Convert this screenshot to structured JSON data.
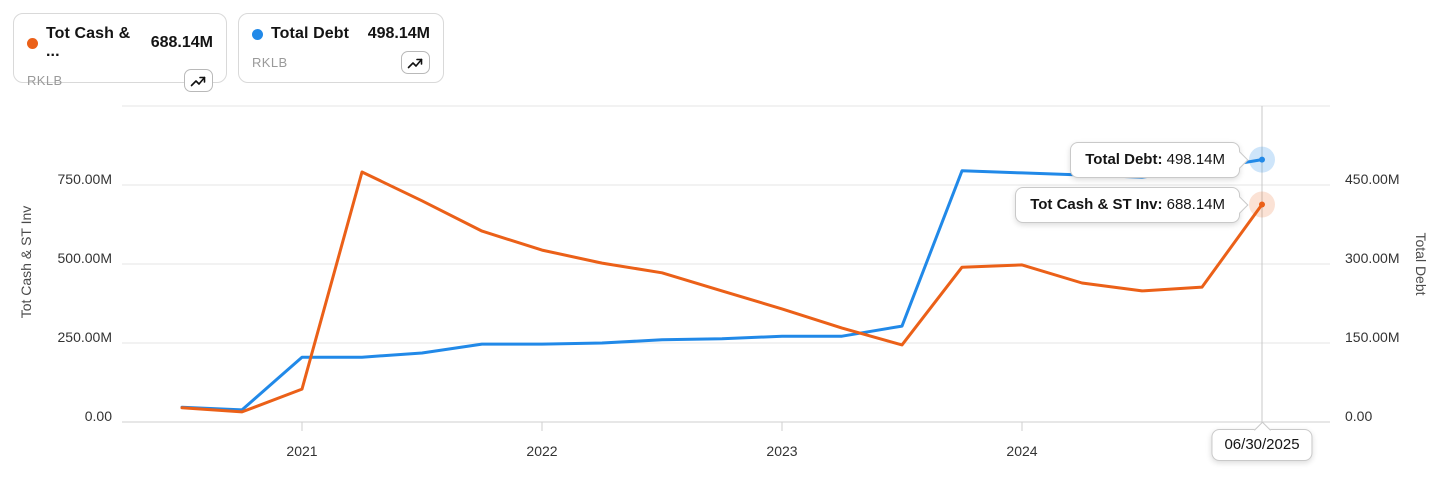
{
  "page": {
    "background": "#ffffff"
  },
  "legend_cards": [
    {
      "series_label": "Tot Cash & ...",
      "value": "688.14M",
      "ticker": "RKLB",
      "color": "#EB6018",
      "icon": "trending-up-icon"
    },
    {
      "series_label": "Total Debt",
      "value": "498.14M",
      "ticker": "RKLB",
      "color": "#2189E8",
      "icon": "trending-up-icon"
    }
  ],
  "tooltips": {
    "debt_label": "Total Debt:",
    "debt_value": " 498.14M",
    "cash_label": "Tot Cash & ST Inv:",
    "cash_value": " 688.14M",
    "date": "06/30/2025"
  },
  "chart_data": {
    "type": "line",
    "x": [
      "12/31/2020",
      "03/31/2021",
      "06/30/2021",
      "09/30/2021",
      "12/31/2021",
      "03/31/2022",
      "06/30/2022",
      "09/30/2022",
      "12/31/2022",
      "03/31/2023",
      "06/30/2023",
      "09/30/2023",
      "12/31/2023",
      "03/31/2024",
      "06/30/2024",
      "09/30/2024",
      "12/31/2024",
      "03/31/2025",
      "06/30/2025"
    ],
    "x_tick_labels": [
      "2021",
      "2022",
      "2023",
      "2024"
    ],
    "x_tick_indices": [
      2,
      6,
      10,
      14
    ],
    "left_axis": {
      "title": "Tot Cash & ST Inv",
      "tick_labels": [
        "750.00M",
        "500.00M",
        "250.00M",
        "0.00"
      ],
      "tick_values": [
        750,
        500,
        250,
        0
      ],
      "ylim": [
        0,
        1000
      ],
      "unit": "M"
    },
    "right_axis": {
      "title": "Total Debt",
      "tick_labels": [
        "450.00M",
        "300.00M",
        "150.00M",
        "0.00"
      ],
      "tick_values": [
        450,
        300,
        150,
        0
      ],
      "ylim": [
        0,
        600
      ],
      "unit": "M"
    },
    "grid": "horizontal",
    "legend_position": "top-left-cards",
    "series": [
      {
        "name": "Tot Cash & ST Inv",
        "ticker": "RKLB",
        "axis": "left",
        "color": "#EB6018",
        "values": [
          45,
          32,
          104,
          791,
          700,
          604,
          544,
          503,
          472,
          415,
          358,
          297,
          244,
          490,
          497,
          440,
          415,
          427,
          688.14
        ]
      },
      {
        "name": "Total Debt",
        "ticker": "RKLB",
        "axis": "right",
        "color": "#2189E8",
        "values": [
          28,
          23,
          123,
          123,
          131,
          148,
          148,
          150,
          156,
          158,
          163,
          163,
          182,
          477,
          473,
          469,
          465,
          479,
          498.14
        ]
      }
    ],
    "crosshair": {
      "date": "06/30/2025",
      "points": [
        {
          "series": "Tot Cash & ST Inv",
          "value": 688.14
        },
        {
          "series": "Total Debt",
          "value": 498.14
        }
      ]
    }
  }
}
